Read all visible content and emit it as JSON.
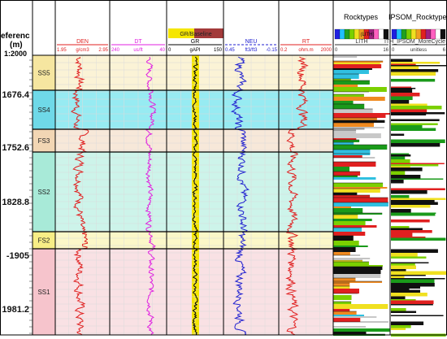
{
  "header": {
    "depth_label_line1": "eferenc",
    "depth_label_line2": "(m)",
    "depth_scale": "1:2000",
    "gr_banner": "GR/Baseline",
    "rocktypes_title": "Rocktypes",
    "ipsom_title": "IPSOM_Rocktypes"
  },
  "tracks": [
    {
      "id": "den",
      "label": "DEN",
      "min": "1.95",
      "unit": "g/cm3",
      "max": "2.95",
      "color": "#e02020"
    },
    {
      "id": "dt",
      "label": "DT",
      "min": "240",
      "unit": "us/ft",
      "max": "40",
      "color": "#e020e0"
    },
    {
      "id": "gr",
      "label": "GR",
      "min": "0",
      "unit": "gAPI",
      "max": "150",
      "color": "#000000"
    },
    {
      "id": "neu",
      "label": "NEU",
      "min": "0.45",
      "unit": "ft3/ft3",
      "max": "-0.15",
      "color": "#2020d0"
    },
    {
      "id": "rt",
      "label": "RT",
      "min": "0.2",
      "unit": "ohm.m",
      "max": "2000",
      "color": "#e02020"
    },
    {
      "id": "lith",
      "label": "LITH",
      "min": "0",
      "unit": "",
      "max": "16",
      "color": "#333333"
    },
    {
      "id": "ipsom",
      "label": "ITH_IPSOM_MoreCycle_R",
      "min": "0",
      "unit": "unitless",
      "max": "6",
      "color": "#333333"
    }
  ],
  "legend_lith_tag": "(LITH)",
  "depth_ticks": [
    "1676.4",
    "1752.6",
    "1828.8",
    "-1905",
    "1981.2"
  ],
  "zones": [
    {
      "name": "SS5",
      "color": "#fbf3d6",
      "band": "#f6e6a0"
    },
    {
      "name": "SS4",
      "color": "#97ebf2",
      "band": "#6fd9e8"
    },
    {
      "name": "FS3",
      "color": "#f7e8d9",
      "band": "#f2d6b4"
    },
    {
      "name": "SS2",
      "color": "#cdf4ea",
      "band": "#a8ead8"
    },
    {
      "name": "FS2",
      "color": "#fbf7c8",
      "band": "#f7ee86"
    },
    {
      "name": "SS1",
      "color": "#f9e1e4",
      "band": "#f6c4cc"
    }
  ]
}
